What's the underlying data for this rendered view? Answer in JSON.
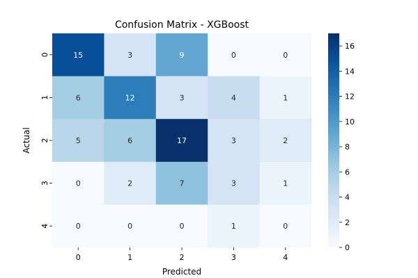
{
  "chart_data": {
    "type": "heatmap",
    "title": "Confusion Matrix - XGBoost",
    "xlabel": "Predicted",
    "ylabel": "Actual",
    "x_categories": [
      "0",
      "1",
      "2",
      "3",
      "4"
    ],
    "y_categories": [
      "0",
      "1",
      "2",
      "3",
      "4"
    ],
    "matrix": [
      [
        15,
        3,
        9,
        0,
        0
      ],
      [
        6,
        12,
        3,
        4,
        1
      ],
      [
        5,
        6,
        17,
        3,
        2
      ],
      [
        0,
        2,
        7,
        3,
        1
      ],
      [
        0,
        0,
        0,
        1,
        0
      ]
    ],
    "colormap": "Blues",
    "color_range": [
      0,
      17
    ],
    "colorbar": {
      "ticks": [
        0,
        2,
        4,
        6,
        8,
        10,
        12,
        14,
        16
      ]
    },
    "annotations": true,
    "grid": false,
    "legend": "colorbar-right"
  }
}
